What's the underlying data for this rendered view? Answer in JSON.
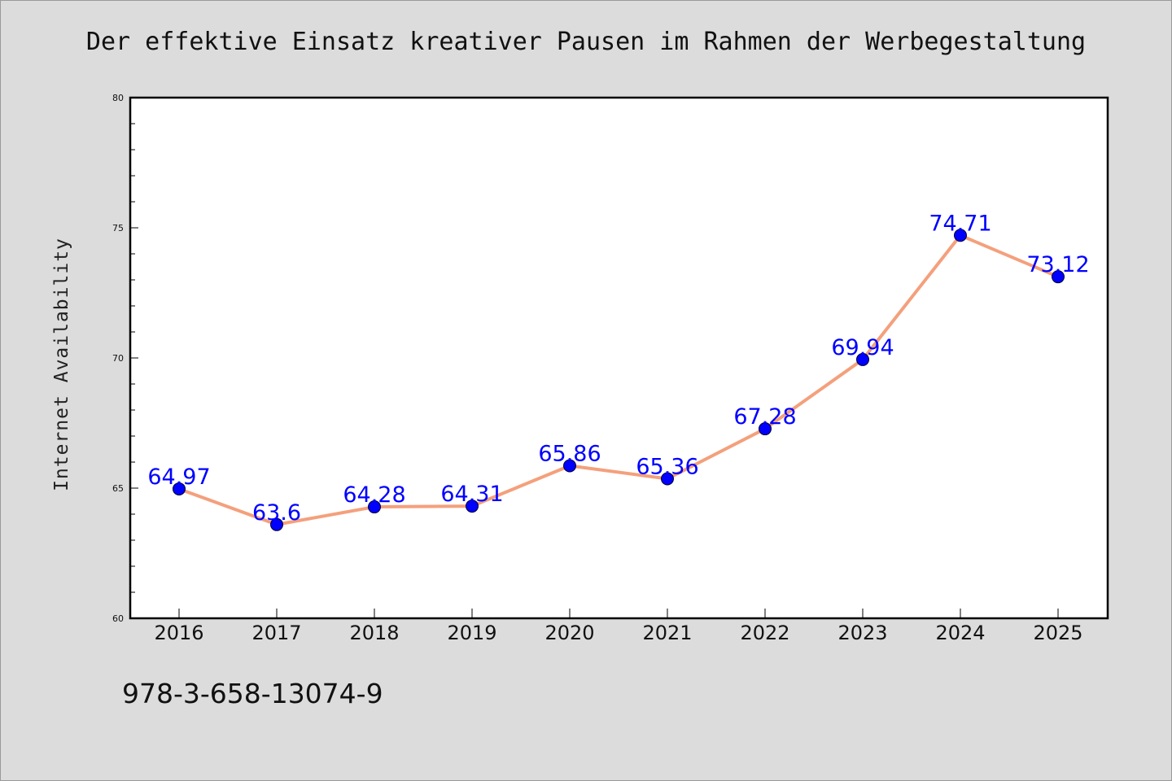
{
  "page": {
    "isbn": "978-3-658-13074-9"
  },
  "chart_data": {
    "type": "line",
    "title": "Der effektive Einsatz kreativer Pausen im Rahmen der Werbegestaltung",
    "xlabel": "",
    "ylabel": "Internet Availability",
    "categories": [
      "2016",
      "2017",
      "2018",
      "2019",
      "2020",
      "2021",
      "2022",
      "2023",
      "2024",
      "2025"
    ],
    "series": [
      {
        "values": [
          64.97,
          63.6,
          64.28,
          64.31,
          65.86,
          65.36,
          67.28,
          69.94,
          74.71,
          73.12
        ],
        "data_labels": [
          "64.97",
          "63.6",
          "64.28",
          "64.31",
          "65.86",
          "65.36",
          "67.28",
          "69.94",
          "74.71",
          "73.12"
        ],
        "line_color": "#f4a07c",
        "marker_color": "#0000ff"
      }
    ],
    "ylim": [
      60,
      80
    ],
    "yticks": [
      60,
      65,
      70,
      75,
      80
    ],
    "grid": false,
    "legend": "none"
  }
}
